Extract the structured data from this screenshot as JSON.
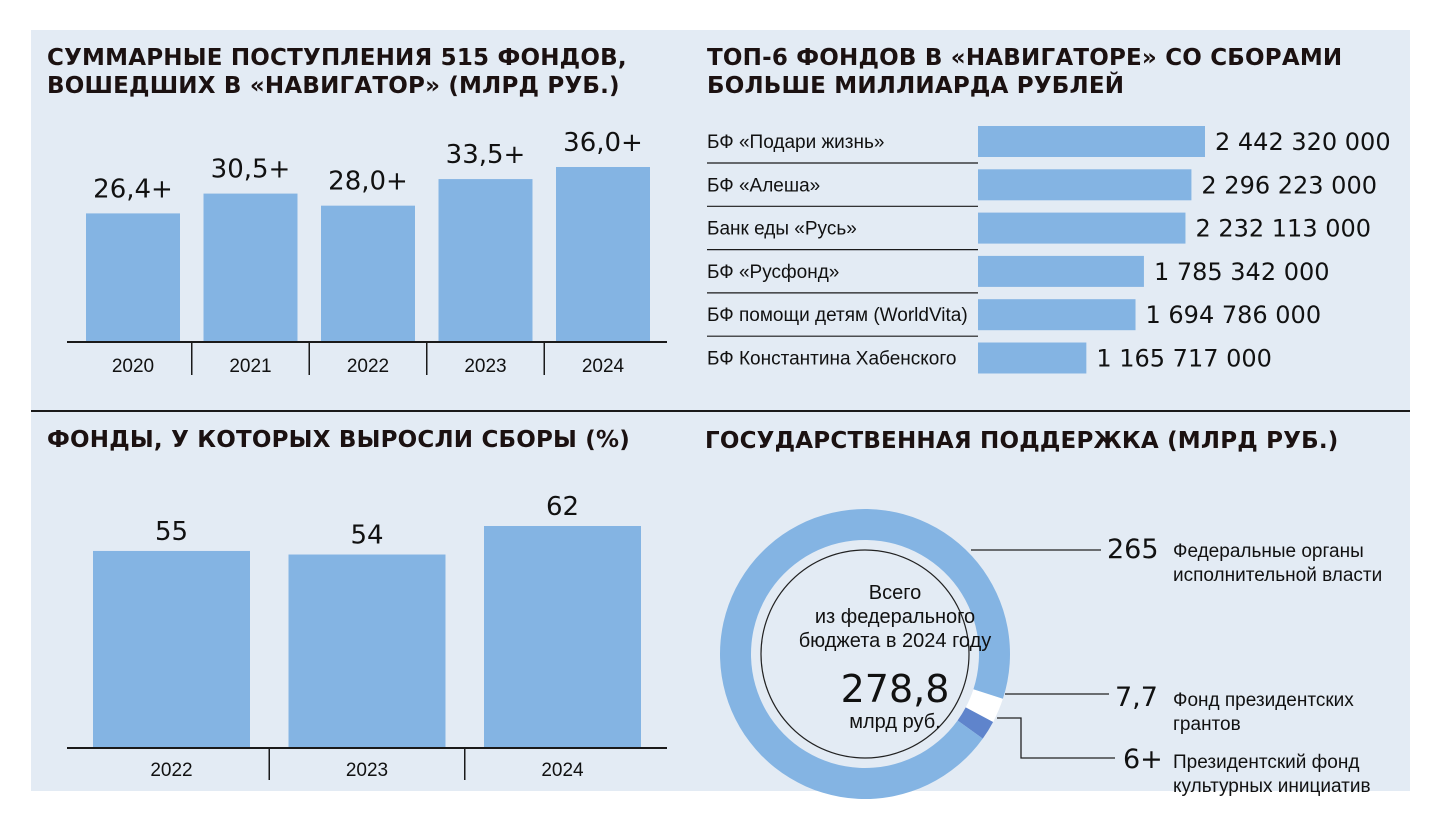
{
  "colors": {
    "bar": "#84b4e3",
    "bar_dark": "#5f84cc",
    "bg": "#e3ebf4",
    "axis": "#1a1a1a"
  },
  "chart_data": [
    {
      "type": "bar",
      "title": "СУММАРНЫЕ ПОСТУПЛЕНИЯ 515 ФОНДОВ, ВОШЕДШИХ В «НАВИГАТОР» (МЛРД РУБ.)",
      "categories": [
        "2020",
        "2021",
        "2022",
        "2023",
        "2024"
      ],
      "values": [
        26.4,
        30.5,
        28.0,
        33.5,
        36.0
      ],
      "value_labels": [
        "26,4+",
        "30,5+",
        "28,0+",
        "33,5+",
        "36,0+"
      ],
      "ylim": [
        0,
        36.0
      ]
    },
    {
      "type": "bar",
      "orientation": "horizontal",
      "title": "ТОП-6 ФОНДОВ В «НАВИГАТОРЕ» СО СБОРАМИ БОЛЬШЕ МИЛЛИАРДА РУБЛЕЙ",
      "categories": [
        "БФ «Подари жизнь»",
        "БФ «Алеша»",
        "Банк еды «Русь»",
        "БФ «Русфонд»",
        "БФ помощи детям (WorldVita)",
        "БФ Константина Хабенского"
      ],
      "values": [
        2442320000,
        2296223000,
        2232113000,
        1785342000,
        1694786000,
        1165717000
      ],
      "value_labels": [
        "2 442 320 000",
        "2 296 223 000",
        "2 232 113 000",
        "1 785 342 000",
        "1 694 786 000",
        "1 165 717 000"
      ],
      "xlim": [
        0,
        2442320000
      ]
    },
    {
      "type": "bar",
      "title": "ФОНДЫ, У КОТОРЫХ ВЫРОСЛИ СБОРЫ (%)",
      "categories": [
        "2022",
        "2023",
        "2024"
      ],
      "values": [
        55,
        54,
        62
      ],
      "value_labels": [
        "55",
        "54",
        "62"
      ],
      "ylim": [
        0,
        62
      ]
    },
    {
      "type": "pie",
      "subtype": "donut",
      "title": "ГОСУДАРСТВЕННАЯ ПОДДЕРЖКА (МЛРД РУБ.)",
      "center": {
        "line1": "Всего",
        "line2": "из федерального",
        "line3": "бюджета в 2024 году",
        "total": "278,8",
        "unit": "млрд руб."
      },
      "slices": [
        {
          "label_line1": "Федеральные органы",
          "label_line2": "исполнительной власти",
          "value": 265,
          "value_label": "265",
          "color": "#84b4e3"
        },
        {
          "label_line1": "Фонд президентских",
          "label_line2": "грантов",
          "value": 7.7,
          "value_label": "7,7",
          "color": "#ffffff"
        },
        {
          "label_line1": "Президентский фонд",
          "label_line2": "культурных инициатив",
          "value": 6,
          "value_label": "6+",
          "color": "#5f84cc"
        }
      ]
    }
  ]
}
